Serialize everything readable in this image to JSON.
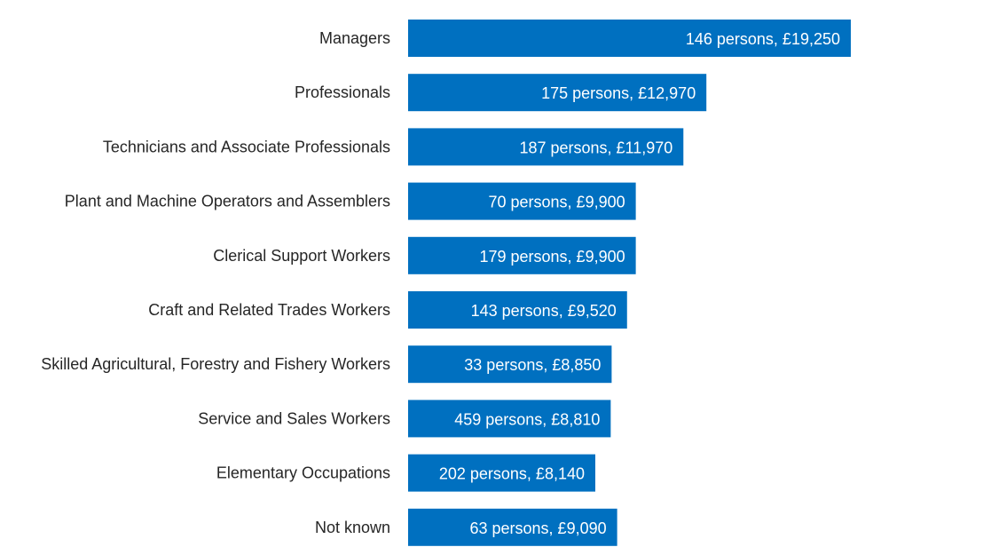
{
  "chart_data": {
    "type": "bar",
    "orientation": "horizontal",
    "title": "",
    "xlabel": "",
    "ylabel": "",
    "xlim": [
      0,
      19250
    ],
    "grid": false,
    "bar_color": "#0070C0",
    "categories": [
      "Managers",
      "Professionals",
      "Technicians and Associate Professionals",
      "Plant and Machine Operators and Assemblers",
      "Clerical Support Workers",
      "Craft and Related Trades Workers",
      "Skilled Agricultural, Forestry and Fishery Workers",
      "Service and Sales Workers",
      "Elementary Occupations",
      "Not known"
    ],
    "values": [
      19250,
      12970,
      11970,
      9900,
      9900,
      9520,
      8850,
      8810,
      8140,
      9090
    ],
    "persons": [
      146,
      175,
      187,
      70,
      179,
      143,
      33,
      459,
      202,
      63
    ],
    "data_labels": [
      "146 persons, £19,250",
      "175 persons, £12,970",
      "187 persons, £11,970",
      "70 persons, £9,900",
      "179 persons, £9,900",
      "143 persons, £9,520",
      "33 persons, £8,850",
      "459 persons, £8,810",
      "202 persons, £8,140",
      "63 persons, £9,090"
    ]
  }
}
